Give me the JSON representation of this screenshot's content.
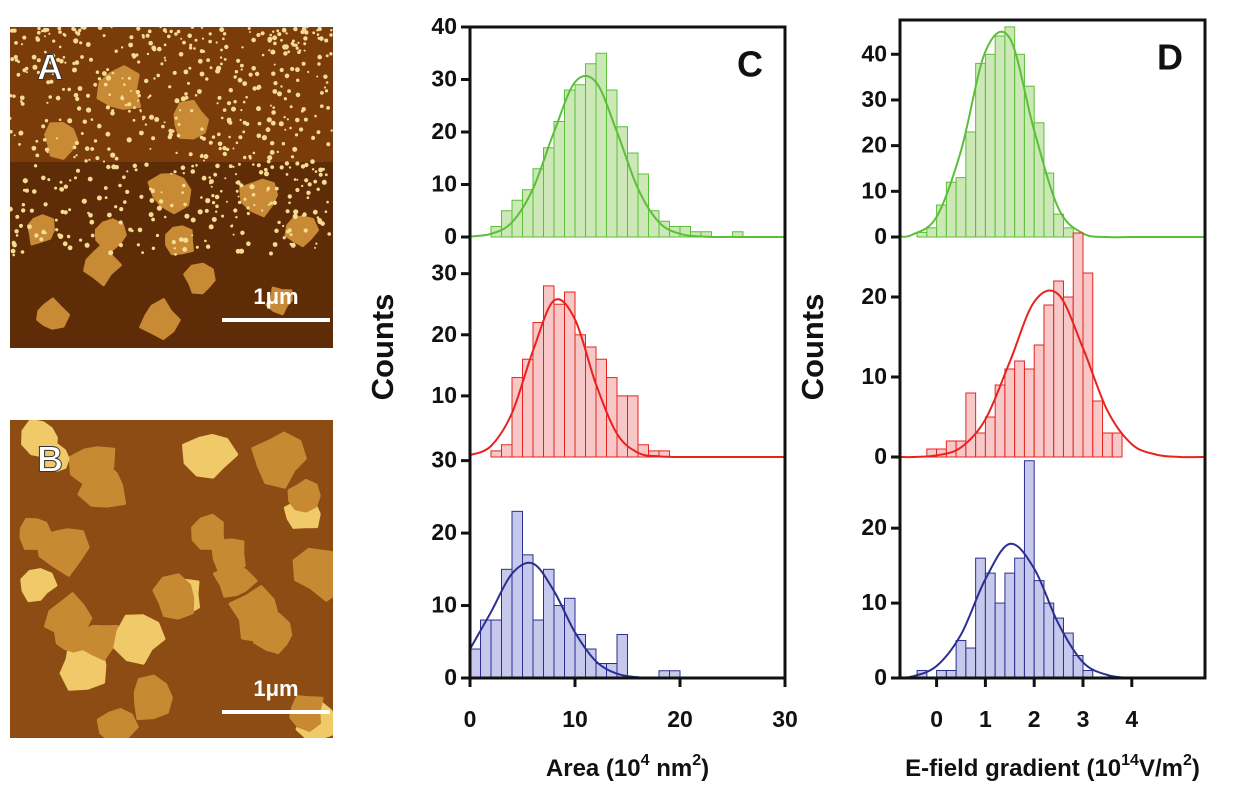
{
  "panels": [
    {
      "label": "A",
      "scale_bar": "1μm"
    },
    {
      "label": "B",
      "scale_bar": "1μm"
    }
  ],
  "chart_data": [
    {
      "type": "histogram",
      "label": "C",
      "color": "#5cbf3a",
      "fill": "#cbe8b6",
      "bins": [
        2,
        3,
        4,
        5,
        6,
        7,
        8,
        9,
        10,
        11,
        12,
        13,
        14,
        15,
        16,
        17,
        18,
        19,
        20,
        21,
        22,
        23,
        24,
        25,
        26
      ],
      "values": [
        2,
        5,
        7,
        9,
        13,
        17,
        22,
        28,
        29,
        33,
        35,
        28,
        21,
        16,
        12,
        5,
        3,
        2,
        2,
        1,
        1,
        0,
        0,
        1
      ],
      "fit": {
        "x": [
          0,
          2,
          4,
          6,
          8,
          10,
          12,
          14,
          16,
          18,
          20,
          22,
          24,
          26,
          28,
          30
        ],
        "values": [
          0.1,
          0.6,
          2.8,
          9.2,
          20.0,
          29.5,
          29.5,
          20.0,
          9.2,
          2.8,
          0.6,
          0.1,
          0,
          0,
          0,
          0
        ]
      },
      "xlim": [
        0,
        30
      ],
      "ylim": [
        0,
        40
      ],
      "yticks": [
        0,
        10,
        20,
        30,
        40
      ]
    },
    {
      "type": "histogram",
      "ylabel": "Counts",
      "color": "#e8231f",
      "fill": "#f8c8c8",
      "bins": [
        2,
        3,
        4,
        5,
        6,
        7,
        8,
        9,
        10,
        11,
        12,
        13,
        14,
        15,
        16,
        17,
        18,
        19
      ],
      "values": [
        1,
        2,
        13,
        16,
        22,
        28,
        25,
        27,
        20,
        18,
        16,
        13,
        10,
        10,
        2,
        1,
        1
      ],
      "fit": {
        "x": [
          0,
          2,
          4,
          6,
          8,
          10,
          12,
          14,
          16,
          18,
          20,
          22,
          24,
          26,
          28,
          30
        ],
        "values": [
          0.3,
          1.8,
          7.2,
          17.4,
          25.6,
          22.5,
          11.9,
          3.8,
          0.7,
          0.1,
          0,
          0,
          0,
          0,
          0,
          0
        ]
      },
      "xlim": [
        0,
        30
      ],
      "ylim": [
        0,
        36
      ],
      "yticks": [
        10,
        20,
        30
      ]
    },
    {
      "type": "histogram",
      "xlabel": [
        "Area (10",
        "4",
        " nm",
        "2",
        ")"
      ],
      "color": "#2b2f8f",
      "fill": "#c6c9ec",
      "bins": [
        0,
        1,
        2,
        3,
        4,
        5,
        6,
        7,
        8,
        9,
        10,
        11,
        12,
        13,
        14,
        15,
        16,
        17,
        18,
        19,
        20
      ],
      "values": [
        4,
        8,
        8,
        15,
        23,
        17,
        8,
        15,
        10,
        11,
        6,
        4,
        2,
        2,
        6,
        0,
        0,
        0,
        1,
        1
      ],
      "fit": {
        "x": [
          0,
          2,
          4,
          6,
          8,
          10,
          12,
          14,
          16,
          18,
          20,
          22,
          24,
          26,
          28,
          30
        ],
        "values": [
          4.0,
          9.1,
          14.4,
          15.8,
          12.0,
          6.3,
          2.3,
          0.6,
          0.1,
          0,
          0,
          0,
          0,
          0,
          0,
          0
        ]
      },
      "xlim": [
        0,
        30
      ],
      "ylim": [
        0,
        30.5
      ],
      "yticks": [
        0,
        10,
        20,
        30
      ],
      "xticks": [
        0,
        10,
        20,
        30
      ]
    },
    {
      "type": "histogram",
      "label": "D",
      "color": "#5cbf3a",
      "fill": "#cbe8b6",
      "bins": [
        -0.4,
        -0.2,
        0,
        0.2,
        0.4,
        0.6,
        0.8,
        1.0,
        1.2,
        1.4,
        1.6,
        1.8,
        2.0,
        2.2,
        2.4,
        2.6,
        2.8
      ],
      "values": [
        1,
        2,
        7,
        12,
        13,
        23,
        38,
        40,
        44,
        46,
        40,
        33,
        25,
        14,
        5,
        2
      ],
      "fit": {
        "x": [
          -0.75,
          -0.5,
          0,
          0.5,
          1.0,
          1.5,
          2.0,
          2.5,
          3.0,
          3.5,
          4.0,
          4.5,
          5.0,
          5.5
        ],
        "values": [
          0.1,
          0.5,
          4.4,
          18.9,
          40.6,
          43.5,
          23.3,
          6.2,
          0.8,
          0,
          0,
          0,
          0,
          0
        ]
      },
      "xlim": [
        -0.75,
        5.5
      ],
      "ylim": [
        0,
        47.5
      ],
      "yticks": [
        0,
        10,
        20,
        30,
        40
      ]
    },
    {
      "type": "histogram",
      "ylabel": "Counts",
      "color": "#e8231f",
      "fill": "#f8c8c8",
      "bins": [
        -0.2,
        0,
        0.2,
        0.4,
        0.6,
        0.8,
        1.0,
        1.2,
        1.4,
        1.6,
        1.8,
        2.0,
        2.2,
        2.4,
        2.6,
        2.8,
        3.0,
        3.2,
        3.4,
        3.6,
        3.8
      ],
      "values": [
        1,
        1,
        2,
        2,
        8,
        3,
        5,
        9,
        11,
        12,
        11,
        14,
        19,
        22,
        20,
        28,
        23,
        7,
        3,
        3
      ],
      "fit": {
        "x": [
          -0.75,
          -0.5,
          0,
          0.5,
          1.0,
          1.5,
          2.0,
          2.5,
          3.0,
          3.5,
          4.0,
          4.5,
          5.0,
          5.5
        ],
        "values": [
          0,
          0,
          0.2,
          1.2,
          4.7,
          11.9,
          19.4,
          20.3,
          13.6,
          5.8,
          1.6,
          0.3,
          0,
          0
        ]
      },
      "xlim": [
        -0.75,
        5.5
      ],
      "ylim": [
        0,
        27.5
      ],
      "yticks": [
        0,
        10,
        20
      ]
    },
    {
      "type": "histogram",
      "xlabel": [
        "E-field gradient (10",
        "14",
        "V/m",
        "2",
        ")"
      ],
      "color": "#2b2f8f",
      "fill": "#c6c9ec",
      "bins": [
        -0.4,
        -0.2,
        0,
        0.2,
        0.4,
        0.6,
        0.8,
        1.0,
        1.2,
        1.4,
        1.6,
        1.8,
        2.0,
        2.2,
        2.4,
        2.6,
        2.8,
        3.0,
        3.2
      ],
      "values": [
        1,
        0,
        1,
        1,
        5,
        4,
        16,
        14,
        10,
        14,
        16,
        29,
        13,
        10,
        8,
        6,
        3,
        1
      ],
      "fit": {
        "x": [
          -0.75,
          -0.5,
          0,
          0.5,
          1.0,
          1.5,
          2.0,
          2.5,
          3.0,
          3.5,
          4.0,
          4.5,
          5.0,
          5.5
        ],
        "values": [
          0.1,
          0.2,
          1.6,
          5.8,
          13.2,
          17.9,
          14.6,
          7.2,
          2.1,
          0.4,
          0,
          0,
          0,
          0
        ]
      },
      "xlim": [
        -0.75,
        5.5
      ],
      "ylim": [
        0,
        29.5
      ],
      "yticks": [
        0,
        10,
        20
      ],
      "xticks": [
        0,
        1,
        2,
        3,
        4
      ]
    }
  ]
}
